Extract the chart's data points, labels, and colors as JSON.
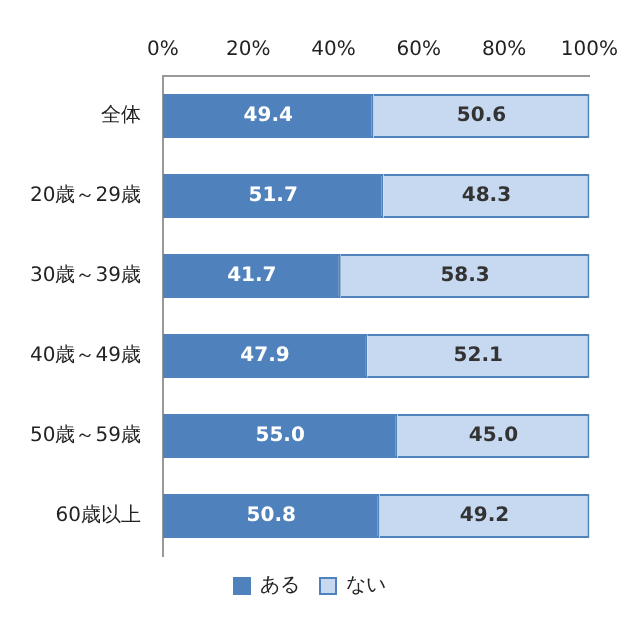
{
  "chart_data": {
    "type": "bar",
    "orientation": "horizontal",
    "stacked": true,
    "categories": [
      "全体",
      "20歳～29歳",
      "30歳～39歳",
      "40歳～49歳",
      "50歳～59歳",
      "60歳以上"
    ],
    "series": [
      {
        "name": "ある",
        "color": "#4f81bd",
        "values": [
          49.4,
          51.7,
          41.7,
          47.9,
          55.0,
          50.8
        ],
        "value_labels": [
          "49.4",
          "51.7",
          "41.7",
          "47.9",
          "55.0",
          "50.8"
        ]
      },
      {
        "name": "ない",
        "color": "#c6d9f1",
        "values": [
          50.6,
          48.3,
          58.3,
          52.1,
          45.0,
          49.2
        ],
        "value_labels": [
          "50.6",
          "48.3",
          "58.3",
          "52.1",
          "45.0",
          "49.2"
        ]
      }
    ],
    "xlim": [
      0,
      100
    ],
    "xticks": [
      {
        "value": 0,
        "label": "0%"
      },
      {
        "value": 20,
        "label": "20%"
      },
      {
        "value": 40,
        "label": "40%"
      },
      {
        "value": 60,
        "label": "60%"
      },
      {
        "value": 80,
        "label": "80%"
      },
      {
        "value": 100,
        "label": "100%"
      }
    ],
    "legend": "bottom",
    "grid": false
  }
}
